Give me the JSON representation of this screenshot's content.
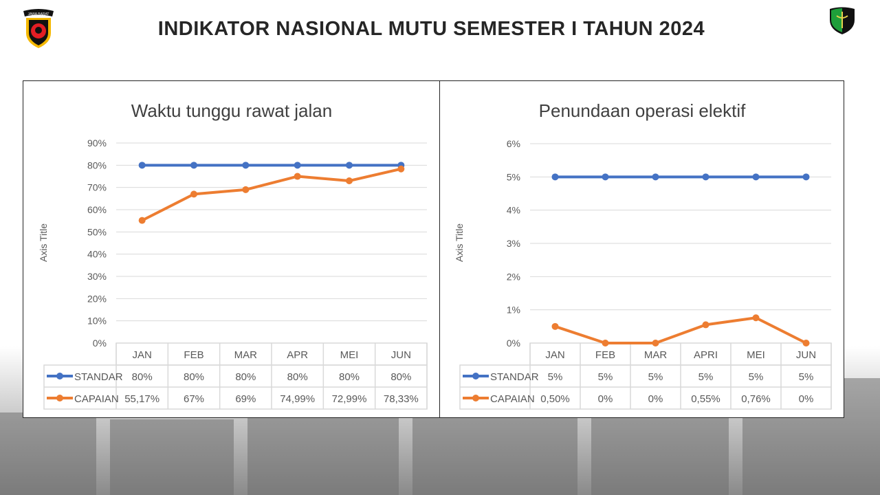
{
  "header": {
    "title": "INDIKATOR NASIONAL MUTU SEMESTER I TAHUN 2024",
    "left_logo_text": "JAWA BARAT"
  },
  "colors": {
    "standar": "#4472c4",
    "capaian": "#ed7d31",
    "grid": "#d9d9d9",
    "text": "#595959"
  },
  "chart_data": [
    {
      "type": "line",
      "title": "Waktu tunggu rawat jalan",
      "ylabel": "Axis Title",
      "ylim": [
        0,
        90
      ],
      "yticks": [
        0,
        10,
        20,
        30,
        40,
        50,
        60,
        70,
        80,
        90
      ],
      "ytick_labels": [
        "0%",
        "10%",
        "20%",
        "30%",
        "40%",
        "50%",
        "60%",
        "70%",
        "80%",
        "90%"
      ],
      "categories": [
        "JAN",
        "FEB",
        "MAR",
        "APR",
        "MEI",
        "JUN"
      ],
      "grid": true,
      "legend": "data-table",
      "series": [
        {
          "name": "STANDAR",
          "values": [
            80,
            80,
            80,
            80,
            80,
            80
          ],
          "labels": [
            "80%",
            "80%",
            "80%",
            "80%",
            "80%",
            "80%"
          ]
        },
        {
          "name": "CAPAIAN",
          "values": [
            55.17,
            67,
            69,
            74.99,
            72.99,
            78.33
          ],
          "labels": [
            "55,17%",
            "67%",
            "69%",
            "74,99%",
            "72,99%",
            "78,33%"
          ]
        }
      ]
    },
    {
      "type": "line",
      "title": "Penundaan operasi elektif",
      "ylabel": "Axis Title",
      "ylim": [
        0,
        6
      ],
      "yticks": [
        0,
        1,
        2,
        3,
        4,
        5,
        6
      ],
      "ytick_labels": [
        "0%",
        "1%",
        "2%",
        "3%",
        "4%",
        "5%",
        "6%"
      ],
      "categories": [
        "JAN",
        "FEB",
        "MAR",
        "APRI",
        "MEI",
        "JUN"
      ],
      "grid": true,
      "legend": "data-table",
      "series": [
        {
          "name": "STANDAR",
          "values": [
            5,
            5,
            5,
            5,
            5,
            5
          ],
          "labels": [
            "5%",
            "5%",
            "5%",
            "5%",
            "5%",
            "5%"
          ]
        },
        {
          "name": "CAPAIAN",
          "values": [
            0.5,
            0,
            0,
            0.55,
            0.76,
            0
          ],
          "labels": [
            "0,50%",
            "0%",
            "0%",
            "0,55%",
            "0,76%",
            "0%"
          ]
        }
      ]
    }
  ]
}
